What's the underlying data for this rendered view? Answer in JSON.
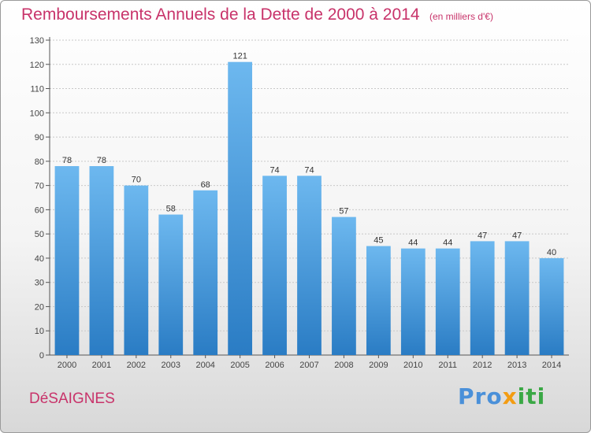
{
  "title": "Remboursements Annuels de la Dette de 2000 à 2014",
  "unit": "(en milliers d'€)",
  "commune": "DéSAIGNES",
  "logo": {
    "part1": "Pro",
    "part2": "x",
    "part3": "iti"
  },
  "colors": {
    "bar_top": "#6db8ef",
    "bar_bottom": "#2a7cc4",
    "title": "#c8336a"
  },
  "chart_data": {
    "type": "bar",
    "title": "Remboursements Annuels de la Dette de 2000 à 2014",
    "xlabel": "",
    "ylabel": "",
    "categories": [
      "2000",
      "2001",
      "2002",
      "2003",
      "2004",
      "2005",
      "2006",
      "2007",
      "2008",
      "2009",
      "2010",
      "2011",
      "2012",
      "2013",
      "2014"
    ],
    "values": [
      78,
      78,
      70,
      58,
      68,
      121,
      74,
      74,
      57,
      45,
      44,
      44,
      47,
      47,
      40
    ],
    "ylim": [
      0,
      130
    ],
    "yticks": [
      0,
      10,
      20,
      30,
      40,
      50,
      60,
      70,
      80,
      90,
      100,
      110,
      120,
      130
    ],
    "grid": true,
    "legend": "none"
  }
}
